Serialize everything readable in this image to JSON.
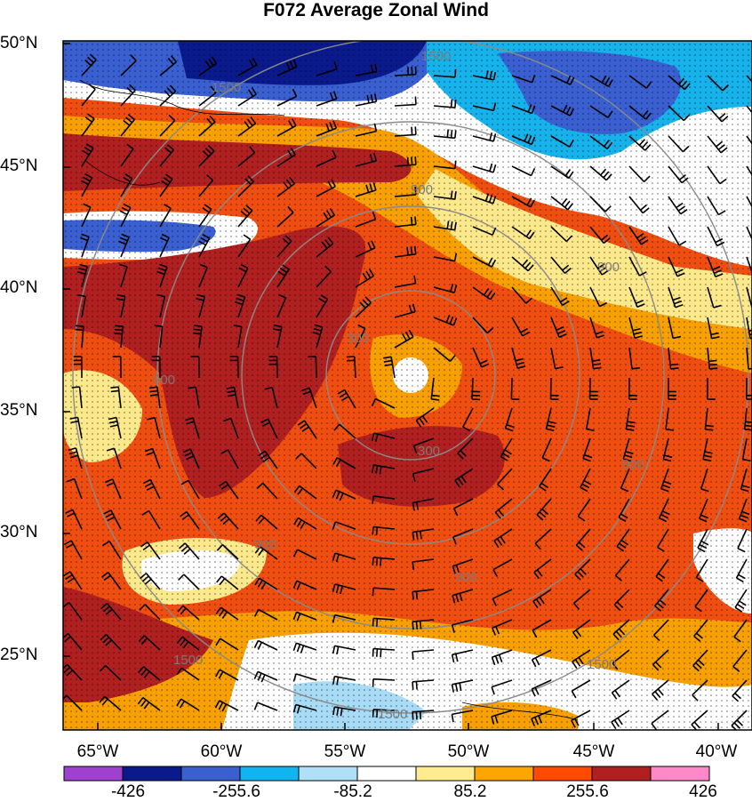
{
  "title": "F072 Average Zonal Wind",
  "latitude_labels": [
    "50°N",
    "45°N",
    "40°N",
    "35°N",
    "30°N",
    "25°N"
  ],
  "longitude_labels": [
    "65°W",
    "60°W",
    "55°W",
    "50°W",
    "45°W",
    "40°W"
  ],
  "contour_labels": [
    "1500",
    "1500",
    "900",
    "900",
    "900",
    "300",
    "300",
    "900",
    "900",
    "900",
    "1500",
    "1500",
    "1500"
  ],
  "colorbar": {
    "tick_labels": [
      "-426",
      "-255.6",
      "-85.2",
      "85.2",
      "255.6",
      "426"
    ],
    "colors": [
      "#a040d0",
      "#0a1a8c",
      "#3a5fd0",
      "#10b4f0",
      "#b0e0f8",
      "#ffffff",
      "#ffeb90",
      "#ffa500",
      "#ff4a00",
      "#b02020",
      "#ff88c8"
    ]
  },
  "palette": {
    "dark_red": "#b02020",
    "red_orange": "#f04e10",
    "orange": "#f7a000",
    "light_yellow": "#fce98c",
    "light_blue": "#a8dcf6",
    "cyan": "#16b2ec",
    "blue": "#3a5fd0",
    "navy": "#0a1a8c"
  }
}
